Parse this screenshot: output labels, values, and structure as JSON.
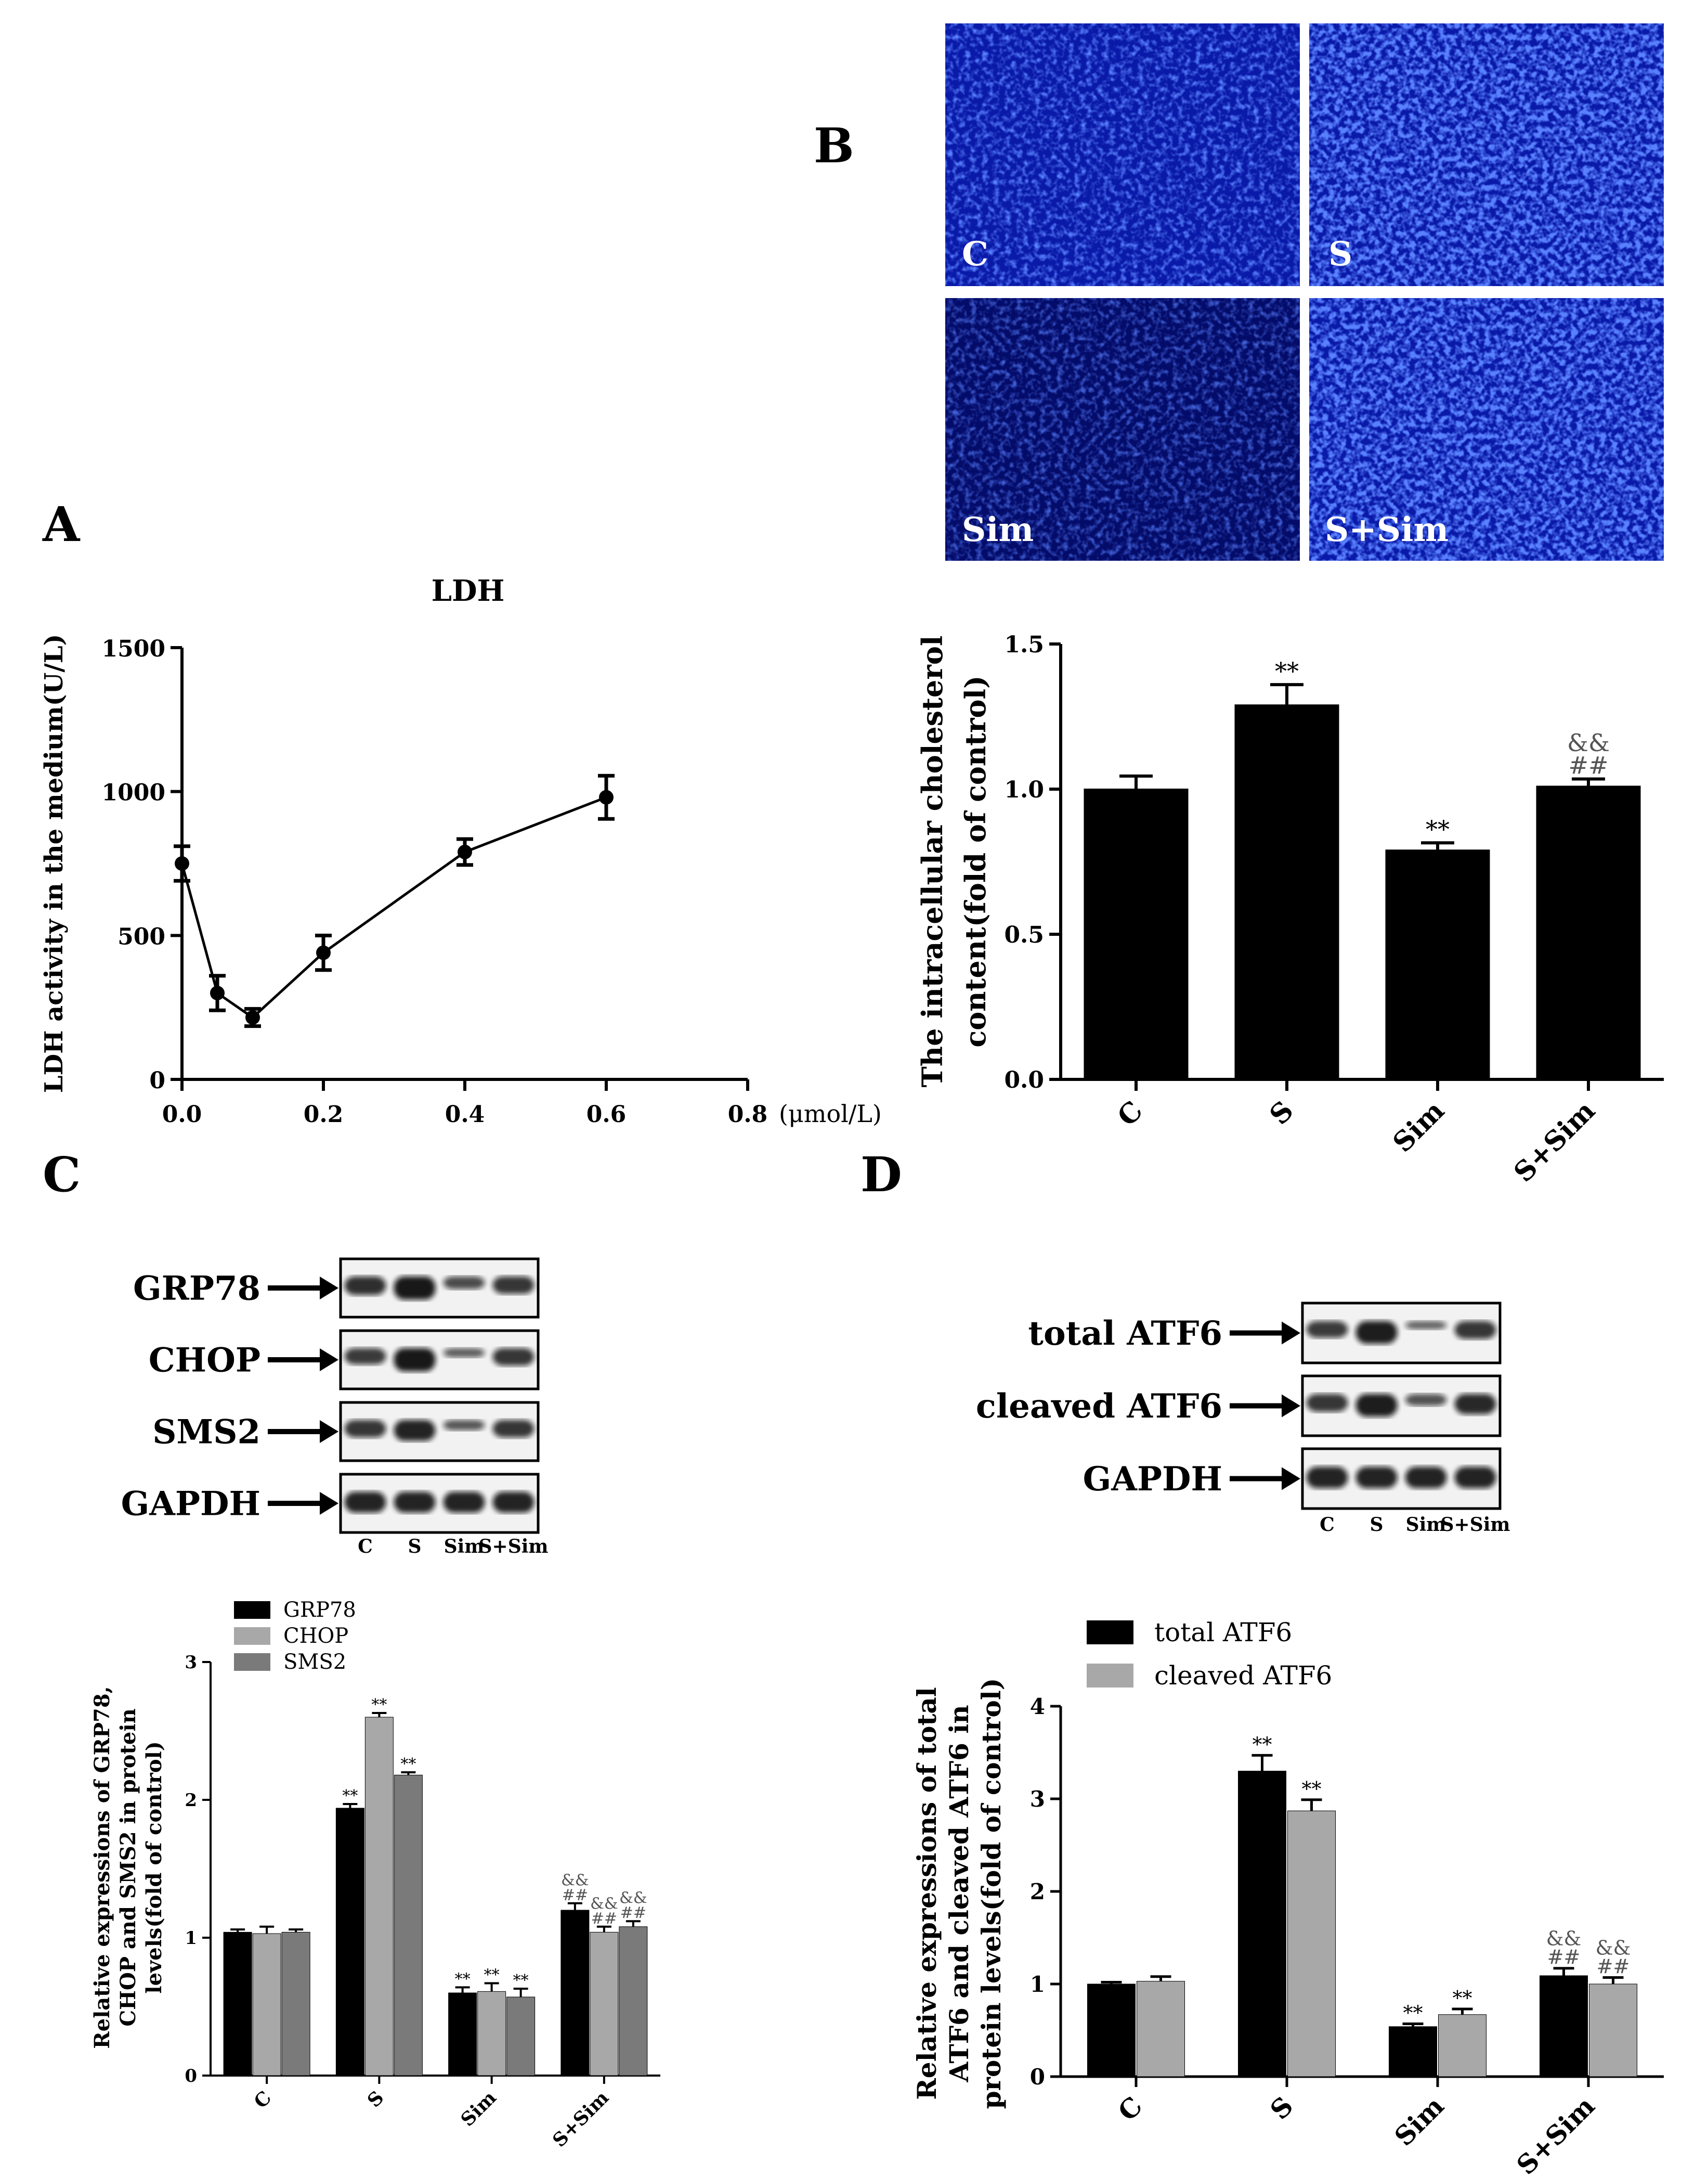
{
  "panel_labels": {
    "a": "A",
    "b": "B",
    "c": "C",
    "d": "D"
  },
  "micrograph": {
    "labels": [
      "C",
      "S",
      "Sim",
      "S+Sim"
    ],
    "colors": {
      "base": "#0a1aa8",
      "bright": "#3450ff",
      "dark": "#040c6a"
    }
  },
  "blot_c": {
    "proteins": [
      "GRP78",
      "CHOP",
      "SMS2",
      "GAPDH"
    ],
    "lanes": [
      "C",
      "S",
      "Sim",
      "S+Sim"
    ]
  },
  "blot_d": {
    "proteins": [
      "total ATF6",
      "cleaved ATF6",
      "GAPDH"
    ],
    "lanes": [
      "C",
      "S",
      "Sim",
      "S+Sim"
    ]
  },
  "chart_data": [
    {
      "id": "A",
      "type": "line",
      "title": "LDH",
      "ylabel": "LDH activity in the medium(U/L)",
      "x_unit": "(μmol/L)",
      "x": [
        0.0,
        0.05,
        0.1,
        0.2,
        0.4,
        0.6
      ],
      "y": [
        750,
        300,
        215,
        440,
        790,
        980
      ],
      "err": [
        60,
        60,
        30,
        60,
        45,
        75
      ],
      "xlim": [
        0,
        0.8
      ],
      "ylim": [
        0,
        1500
      ],
      "xticks": [
        "0.0",
        "0.2",
        "0.4",
        "0.6",
        "0.8"
      ],
      "yticks": [
        "0",
        "500",
        "1000",
        "1500"
      ]
    },
    {
      "id": "B",
      "type": "bar",
      "ylabel": [
        "The intracellular cholesterol",
        "content(fold of control)"
      ],
      "categories": [
        "C",
        "S",
        "Sim",
        "S+Sim"
      ],
      "values": [
        1.0,
        1.29,
        0.79,
        1.01
      ],
      "err": [
        0.045,
        0.07,
        0.025,
        0.025
      ],
      "annotations": [
        [],
        [
          "**"
        ],
        [
          "**"
        ],
        [
          "##",
          "&&"
        ]
      ],
      "ylim": [
        0,
        1.5
      ],
      "yticks": [
        "0.0",
        "0.5",
        "1.0",
        "1.5"
      ],
      "colors": [
        "#000000"
      ]
    },
    {
      "id": "C",
      "type": "bar",
      "ylabel": [
        "Relative expressions of GRP78,",
        "CHOP and SMS2 in protein",
        "levels(fold of control)"
      ],
      "categories": [
        "C",
        "S",
        "Sim",
        "S+Sim"
      ],
      "series": [
        {
          "name": "GRP78",
          "values": [
            1.04,
            1.94,
            0.6,
            1.2
          ],
          "err": [
            0.02,
            0.03,
            0.04,
            0.05
          ],
          "annotations": [
            [],
            [
              "**"
            ],
            [
              "**"
            ],
            [
              "##",
              "&&"
            ]
          ]
        },
        {
          "name": "CHOP",
          "values": [
            1.03,
            2.6,
            0.61,
            1.04
          ],
          "err": [
            0.05,
            0.03,
            0.06,
            0.04
          ],
          "annotations": [
            [],
            [
              "**"
            ],
            [
              "**"
            ],
            [
              "##",
              "&&"
            ]
          ]
        },
        {
          "name": "SMS2",
          "values": [
            1.04,
            2.18,
            0.57,
            1.08
          ],
          "err": [
            0.02,
            0.02,
            0.06,
            0.04
          ],
          "annotations": [
            [],
            [
              "**"
            ],
            [
              "**"
            ],
            [
              "##",
              "&&"
            ]
          ]
        }
      ],
      "colors": [
        "#000000",
        "#a8a8a8",
        "#7a7a7a"
      ],
      "ylim": [
        0,
        3
      ],
      "yticks": [
        "0",
        "1",
        "2",
        "3"
      ],
      "legend_position": "top-left"
    },
    {
      "id": "D",
      "type": "bar",
      "ylabel": [
        "Relative expressions of total",
        "ATF6 and cleaved ATF6 in",
        "protein levels(fold of control)"
      ],
      "categories": [
        "C",
        "S",
        "Sim",
        "S+Sim"
      ],
      "series": [
        {
          "name": "total ATF6",
          "values": [
            1.0,
            3.3,
            0.54,
            1.09
          ],
          "err": [
            0.02,
            0.17,
            0.03,
            0.08
          ],
          "annotations": [
            [],
            [
              "**"
            ],
            [
              "**"
            ],
            [
              "##",
              "&&"
            ]
          ]
        },
        {
          "name": "cleaved ATF6",
          "values": [
            1.03,
            2.87,
            0.67,
            1.0
          ],
          "err": [
            0.05,
            0.12,
            0.06,
            0.07
          ],
          "annotations": [
            [],
            [
              "**"
            ],
            [
              "**"
            ],
            [
              "##",
              "&&"
            ]
          ]
        }
      ],
      "colors": [
        "#000000",
        "#a8a8a8"
      ],
      "ylim": [
        0,
        4
      ],
      "yticks": [
        "0",
        "1",
        "2",
        "3",
        "4"
      ],
      "legend_position": "top-left"
    }
  ]
}
